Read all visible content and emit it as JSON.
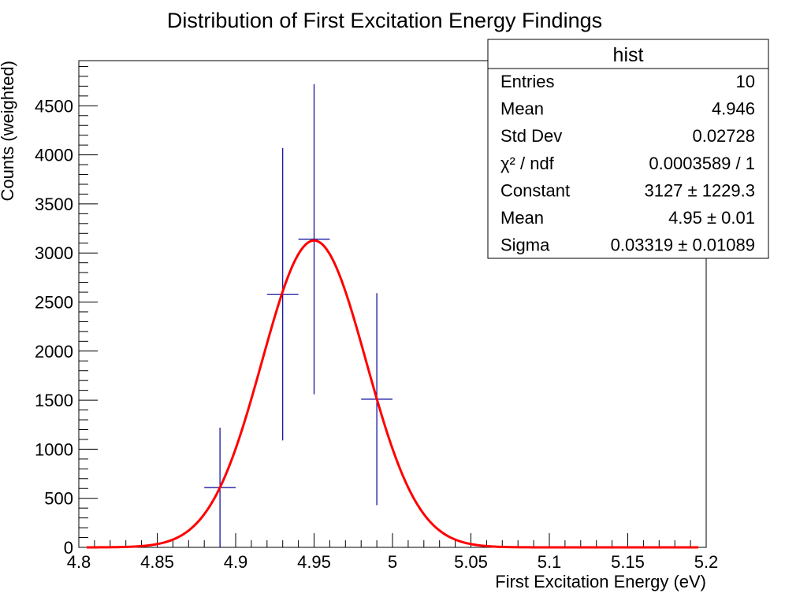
{
  "chart_data": {
    "type": "histogram-with-fit",
    "title": "Distribution of First Excitation Energy Findings",
    "xlabel": "First Excitation Energy (eV)",
    "ylabel": "Counts (weighted)",
    "xlim": [
      4.8,
      5.2
    ],
    "ylim": [
      0,
      4960
    ],
    "x_ticks": [
      4.8,
      4.85,
      4.9,
      4.95,
      5.0,
      5.05,
      5.1,
      5.15,
      5.2
    ],
    "x_tick_labels": [
      "4.8",
      "4.85",
      "4.9",
      "4.95",
      "5",
      "5.05",
      "5.1",
      "5.15",
      "5.2"
    ],
    "y_ticks": [
      0,
      500,
      1000,
      1500,
      2000,
      2500,
      3000,
      3500,
      4000,
      4500
    ],
    "y_tick_labels": [
      "0",
      "500",
      "1000",
      "1500",
      "2000",
      "2500",
      "3000",
      "3500",
      "4000",
      "4500"
    ],
    "bin_width": 0.02,
    "points": [
      {
        "x": 4.89,
        "y": 610,
        "err": 610
      },
      {
        "x": 4.93,
        "y": 2580,
        "err": 1490
      },
      {
        "x": 4.95,
        "y": 3140,
        "err": 1580
      },
      {
        "x": 4.99,
        "y": 1510,
        "err": 1080
      }
    ],
    "fit": {
      "type": "gaus",
      "constant": 3127,
      "mean": 4.95,
      "sigma": 0.03319,
      "x_range": [
        4.805,
        5.195
      ],
      "color": "#ff0000"
    },
    "marker_color": "#000099",
    "stats_box": {
      "title": "hist",
      "rows": [
        {
          "label": "Entries",
          "value": "10"
        },
        {
          "label": "Mean",
          "value": "4.946"
        },
        {
          "label": "Std Dev",
          "value": "0.02728"
        },
        {
          "label": "χ² / ndf",
          "value": "0.0003589 / 1"
        },
        {
          "label": "Constant",
          "value": "3127 ± 1229.3"
        },
        {
          "label": "Mean",
          "value": "4.95 ± 0.01"
        },
        {
          "label": "Sigma",
          "value": "0.03319 ± 0.01089"
        }
      ]
    }
  }
}
